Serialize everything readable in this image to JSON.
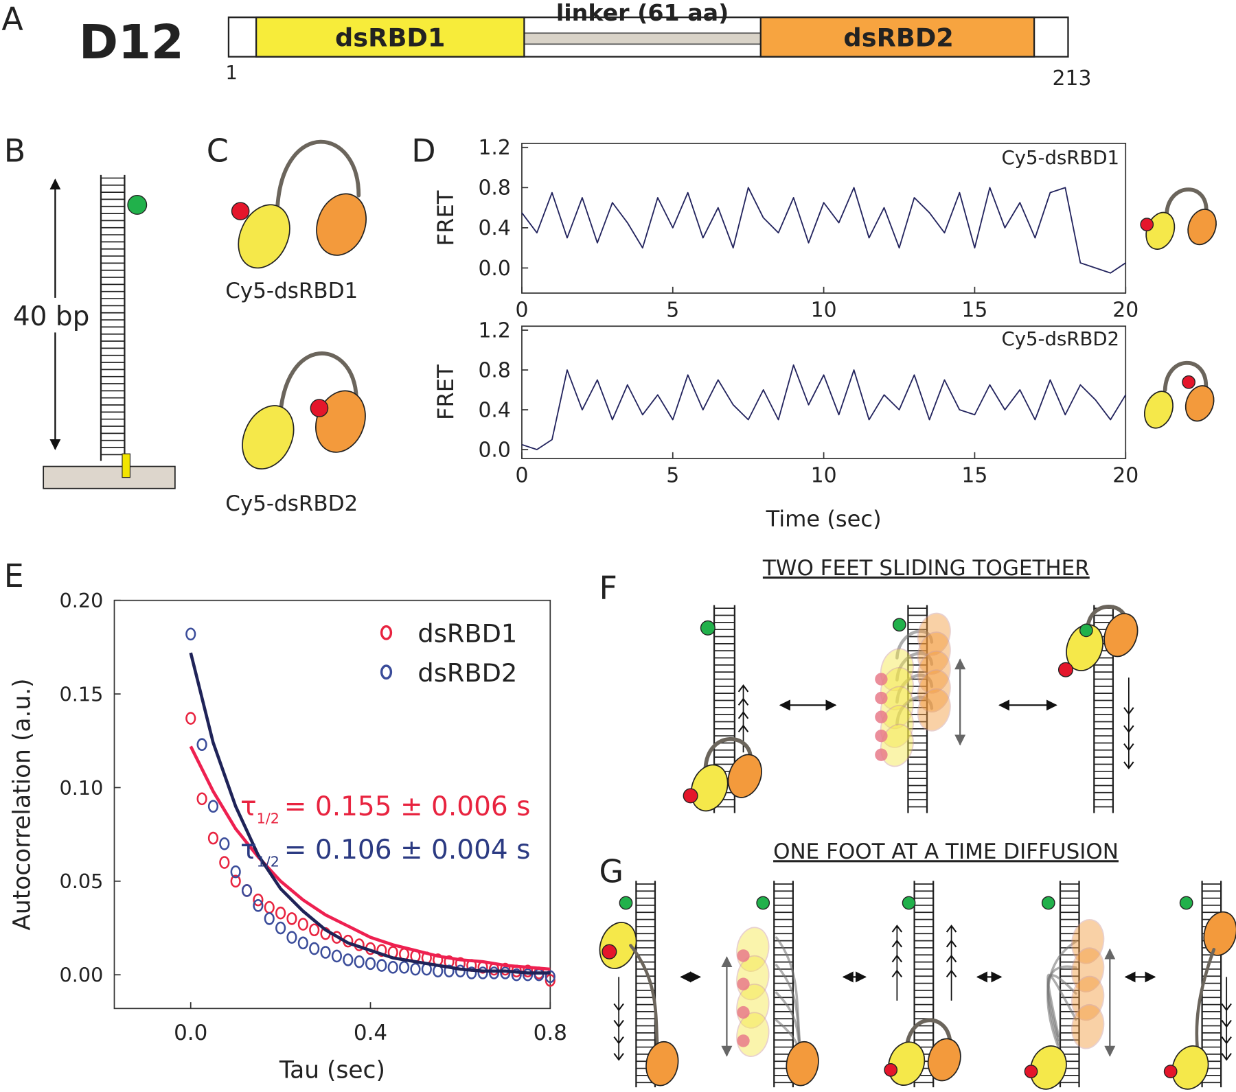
{
  "panels": {
    "A": {
      "label": "A",
      "construct": "D12",
      "domain1": "dsRBD1",
      "linker": "linker (61 aa)",
      "domain2": "dsRBD2",
      "start": "1",
      "end": "213"
    },
    "B": {
      "label": "B",
      "length": "40 bp"
    },
    "C": {
      "label": "C",
      "construct1": "Cy5-dsRBD1",
      "construct2": "Cy5-dsRBD2"
    },
    "D": {
      "label": "D"
    },
    "E": {
      "label": "E"
    },
    "F": {
      "label": "F",
      "title": "TWO FEET SLIDING TOGETHER"
    },
    "G": {
      "label": "G",
      "title": "ONE FOOT AT A TIME DIFFUSION"
    }
  },
  "chart_data": [
    {
      "type": "line",
      "ylabel": "FRET",
      "annotation": "Cy5-dsRBD1",
      "xlim": [
        0,
        20
      ],
      "ylim": [
        -0.25,
        1.24
      ],
      "xticks": [
        0,
        5,
        10,
        15,
        20
      ],
      "yticks": [
        {
          "value": 0,
          "label": "0.0"
        },
        0.4,
        0.8,
        1.2
      ],
      "series": [
        {
          "color": "#23245e",
          "x": [
            0,
            0.5,
            1,
            1.5,
            2,
            2.5,
            3,
            3.5,
            4,
            4.5,
            5,
            5.5,
            6,
            6.5,
            7,
            7.5,
            8,
            8.5,
            9,
            9.5,
            10,
            10.5,
            11,
            11.5,
            12,
            12.5,
            13,
            13.5,
            14,
            14.5,
            15,
            15.5,
            16,
            16.5,
            17,
            17.5,
            18,
            18.5,
            19,
            19.5,
            20
          ],
          "values": [
            0.55,
            0.35,
            0.75,
            0.3,
            0.7,
            0.25,
            0.65,
            0.45,
            0.2,
            0.7,
            0.4,
            0.75,
            0.3,
            0.6,
            0.2,
            0.8,
            0.5,
            0.35,
            0.7,
            0.25,
            0.65,
            0.45,
            0.8,
            0.3,
            0.6,
            0.2,
            0.7,
            0.55,
            0.35,
            0.75,
            0.2,
            0.8,
            0.4,
            0.65,
            0.3,
            0.75,
            0.8,
            0.05,
            0.0,
            -0.05,
            0.05
          ]
        }
      ]
    },
    {
      "type": "line",
      "ylabel": "FRET",
      "xlabel": "Time (sec)",
      "annotation": "Cy5-dsRBD2",
      "xlim": [
        0,
        20
      ],
      "ylim": [
        -0.09,
        1.24
      ],
      "xticks": [
        0,
        5,
        10,
        15,
        20
      ],
      "yticks": [
        {
          "value": 0,
          "label": "0.0"
        },
        0.4,
        0.8,
        1.2
      ],
      "series": [
        {
          "color": "#23245e",
          "x": [
            0,
            0.5,
            1,
            1.5,
            2,
            2.5,
            3,
            3.5,
            4,
            4.5,
            5,
            5.5,
            6,
            6.5,
            7,
            7.5,
            8,
            8.5,
            9,
            9.5,
            10,
            10.5,
            11,
            11.5,
            12,
            12.5,
            13,
            13.5,
            14,
            14.5,
            15,
            15.5,
            16,
            16.5,
            17,
            17.5,
            18,
            18.5,
            19,
            19.5,
            20
          ],
          "values": [
            0.05,
            0.0,
            0.1,
            0.8,
            0.4,
            0.7,
            0.3,
            0.65,
            0.35,
            0.55,
            0.3,
            0.75,
            0.4,
            0.7,
            0.45,
            0.3,
            0.6,
            0.3,
            0.85,
            0.45,
            0.75,
            0.35,
            0.8,
            0.3,
            0.55,
            0.4,
            0.75,
            0.3,
            0.7,
            0.4,
            0.35,
            0.65,
            0.4,
            0.6,
            0.3,
            0.7,
            0.35,
            0.65,
            0.5,
            0.3,
            0.55
          ]
        }
      ]
    },
    {
      "type": "scatter",
      "ylabel": "Autocorrelation (a.u.)",
      "xlabel": "Tau (sec)",
      "xlim": [
        -0.17,
        0.8
      ],
      "ylim": [
        -0.018,
        0.2
      ],
      "xticks": [
        {
          "value": 0,
          "label": "0.0"
        },
        0.4,
        0.8
      ],
      "yticks": [
        {
          "value": 0,
          "label": "0.00"
        },
        0.05,
        {
          "value": 0.1,
          "label": "0.10"
        },
        0.15,
        {
          "value": 0.2,
          "label": "0.20"
        }
      ],
      "annotations": [
        {
          "symbol": "τ",
          "subscript": "1/2",
          "text": "= 0.155 ± 0.006 s",
          "color": "#e8233f"
        },
        {
          "symbol": "τ",
          "subscript": "1/2",
          "text": "= 0.106 ± 0.004 s",
          "color": "#2b3a82"
        }
      ],
      "series": [
        {
          "name": "dsRBD1",
          "color": "#e8233f",
          "x": [
            0,
            0.025,
            0.05,
            0.075,
            0.1,
            0.125,
            0.15,
            0.175,
            0.2,
            0.225,
            0.25,
            0.275,
            0.3,
            0.325,
            0.35,
            0.375,
            0.4,
            0.425,
            0.45,
            0.475,
            0.5,
            0.525,
            0.55,
            0.575,
            0.6,
            0.625,
            0.65,
            0.675,
            0.7,
            0.725,
            0.75,
            0.775,
            0.8
          ],
          "values": [
            0.137,
            0.094,
            0.073,
            0.06,
            0.05,
            0.045,
            0.04,
            0.036,
            0.033,
            0.03,
            0.027,
            0.024,
            0.022,
            0.02,
            0.018,
            0.016,
            0.014,
            0.013,
            0.012,
            0.011,
            0.01,
            0.009,
            0.008,
            0.007,
            0.006,
            0.005,
            0.004,
            0.003,
            0.003,
            0.002,
            0.002,
            0.001,
            -0.003
          ]
        },
        {
          "name": "dsRBD2",
          "color": "#3a4c9a",
          "x": [
            0,
            0.025,
            0.05,
            0.075,
            0.1,
            0.125,
            0.15,
            0.175,
            0.2,
            0.225,
            0.25,
            0.275,
            0.3,
            0.325,
            0.35,
            0.375,
            0.4,
            0.425,
            0.45,
            0.475,
            0.5,
            0.525,
            0.55,
            0.575,
            0.6,
            0.625,
            0.65,
            0.675,
            0.7,
            0.725,
            0.75,
            0.775,
            0.8
          ],
          "values": [
            0.182,
            0.123,
            0.09,
            0.07,
            0.055,
            0.045,
            0.037,
            0.03,
            0.025,
            0.02,
            0.017,
            0.014,
            0.012,
            0.01,
            0.008,
            0.007,
            0.006,
            0.005,
            0.004,
            0.004,
            0.003,
            0.003,
            0.002,
            0.002,
            0.002,
            0.001,
            0.001,
            0.001,
            0.001,
            0,
            0,
            0,
            -0.001
          ]
        },
        {
          "type": "line",
          "color": "#ee2050",
          "x": [
            0,
            0.05,
            0.1,
            0.15,
            0.2,
            0.25,
            0.3,
            0.35,
            0.4,
            0.45,
            0.5,
            0.55,
            0.6,
            0.65,
            0.7,
            0.75,
            0.8
          ],
          "values": [
            0.122,
            0.098,
            0.078,
            0.063,
            0.05,
            0.04,
            0.032,
            0.026,
            0.02,
            0.016,
            0.013,
            0.01,
            0.008,
            0.007,
            0.005,
            0.004,
            0.003
          ]
        },
        {
          "type": "line",
          "color": "#1f2358",
          "x": [
            0,
            0.05,
            0.1,
            0.15,
            0.2,
            0.25,
            0.3,
            0.35,
            0.4,
            0.45,
            0.5,
            0.55,
            0.6,
            0.65,
            0.7,
            0.75,
            0.8
          ],
          "values": [
            0.172,
            0.124,
            0.09,
            0.064,
            0.046,
            0.034,
            0.024,
            0.017,
            0.013,
            0.009,
            0.007,
            0.005,
            0.003,
            0.002,
            0.002,
            0.001,
            0.001
          ]
        }
      ]
    }
  ]
}
